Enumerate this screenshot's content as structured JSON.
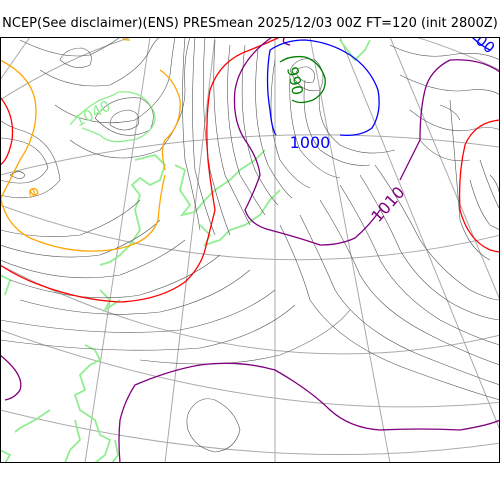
{
  "header": {
    "title": "NCEP(See disclaimer)(ENS) PRESmean 2025/12/03 00Z FT=120 (init 2800Z)"
  },
  "map": {
    "contour_labels": {
      "l1040": "1040",
      "l990": "990",
      "l1000": "1000",
      "l1010": "1010",
      "l1000_corner": "00",
      "l1010_small": "0"
    },
    "colors": {
      "isobar": "#555555",
      "graticule": "#aaaaaa",
      "coastline": "#90ee90",
      "c990": "#008000",
      "c1000": "#0000ff",
      "c1010": "#800080",
      "c1020": "#ff0000",
      "c1030": "#ffa500",
      "c1040": "#90ee90"
    }
  }
}
